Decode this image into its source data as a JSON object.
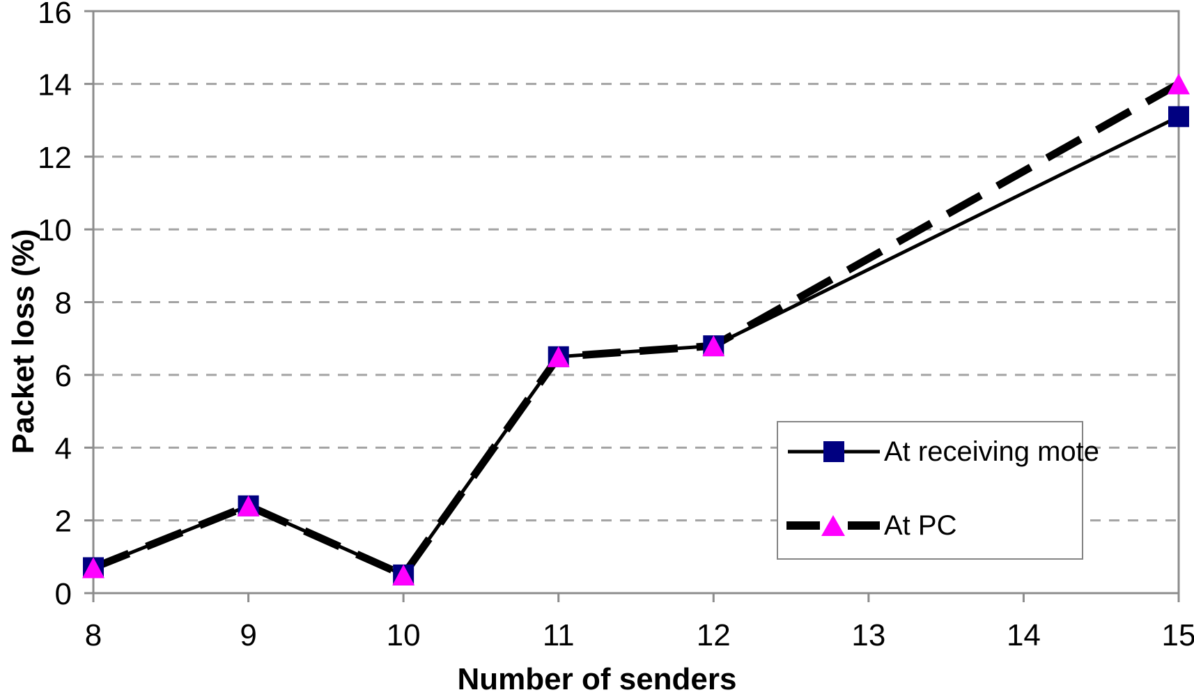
{
  "chart_data": {
    "type": "line",
    "title": "",
    "xlabel": "Number of senders",
    "ylabel": "Packet loss (%)",
    "x": [
      8,
      9,
      10,
      11,
      12,
      15
    ],
    "series": [
      {
        "name": "At receiving mote",
        "values": [
          0.7,
          2.4,
          0.5,
          6.5,
          6.8,
          13.1
        ],
        "line": {
          "style": "solid",
          "color": "#000000",
          "width": 5
        },
        "marker": {
          "shape": "square",
          "color": "#000080",
          "size": 30
        }
      },
      {
        "name": "At PC",
        "values": [
          0.7,
          2.4,
          0.5,
          6.5,
          6.8,
          14.0
        ],
        "line": {
          "style": "dashed",
          "color": "#000000",
          "width": 11,
          "dash": "55 27"
        },
        "marker": {
          "shape": "triangle",
          "color": "#ff00ff",
          "size": 30
        }
      }
    ],
    "xlim": [
      8,
      15
    ],
    "ylim": [
      0,
      16
    ],
    "xticks": [
      8,
      9,
      10,
      11,
      12,
      13,
      14,
      15
    ],
    "yticks": [
      0,
      2,
      4,
      6,
      8,
      10,
      12,
      14,
      16
    ],
    "grid": "horizontal dashed gridlines every 2 units",
    "legend_position": "inside lower-right",
    "colors": {
      "axis": "#8c8c8c",
      "gridline": "#a3a3a3",
      "text": "#000000",
      "background": "#ffffff"
    }
  }
}
